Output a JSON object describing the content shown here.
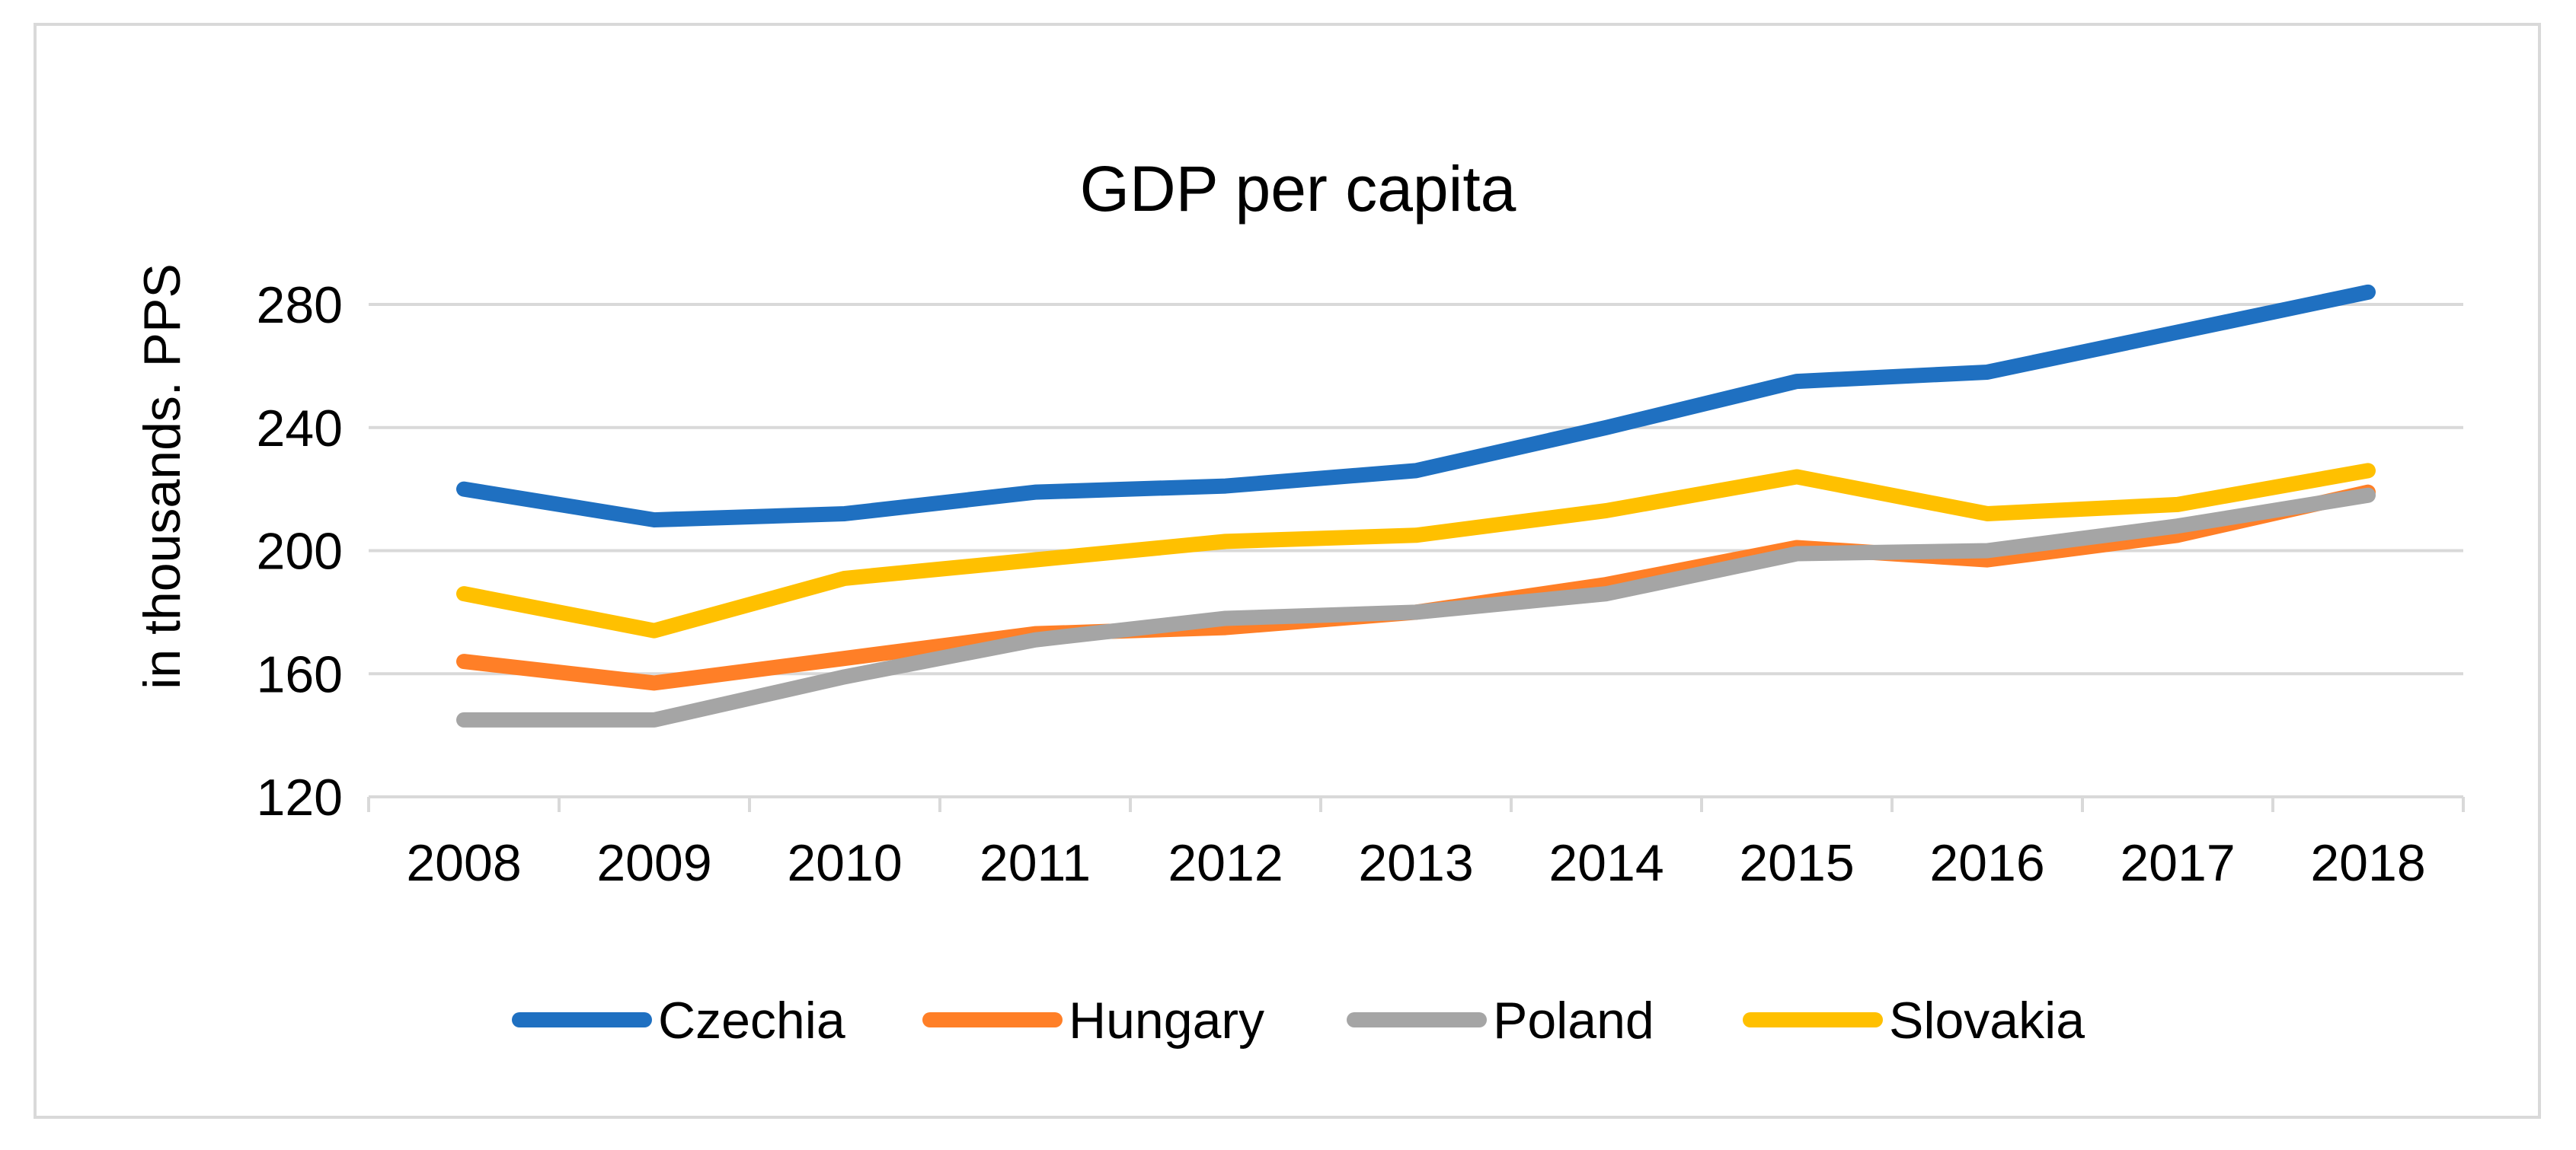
{
  "chart_data": {
    "type": "line",
    "title": "GDP per capita",
    "xlabel": "",
    "ylabel": "in thousands. PPS",
    "categories": [
      "2008",
      "2009",
      "2010",
      "2011",
      "2012",
      "2013",
      "2014",
      "2015",
      "2016",
      "2017",
      "2018"
    ],
    "ylim": [
      120,
      280
    ],
    "yticks": [
      "120",
      "160",
      "200",
      "240",
      "280"
    ],
    "grid": true,
    "legend_position": "bottom",
    "series": [
      {
        "name": "Czechia",
        "color": "#1f70c1",
        "values": [
          220,
          210,
          212,
          219,
          221,
          226,
          240,
          255,
          258,
          271,
          284
        ]
      },
      {
        "name": "Hungary",
        "color": "#ff7f27",
        "values": [
          164,
          157,
          165,
          173,
          175,
          180,
          189,
          201,
          197,
          205,
          219
        ]
      },
      {
        "name": "Poland",
        "color": "#a5a5a5",
        "values": [
          145,
          145,
          159,
          171,
          178,
          180,
          186,
          199,
          200,
          208,
          218
        ]
      },
      {
        "name": "Slovakia",
        "color": "#ffc000",
        "values": [
          186,
          174,
          191,
          197,
          203,
          205,
          213,
          224,
          212,
          215,
          226
        ]
      }
    ]
  }
}
